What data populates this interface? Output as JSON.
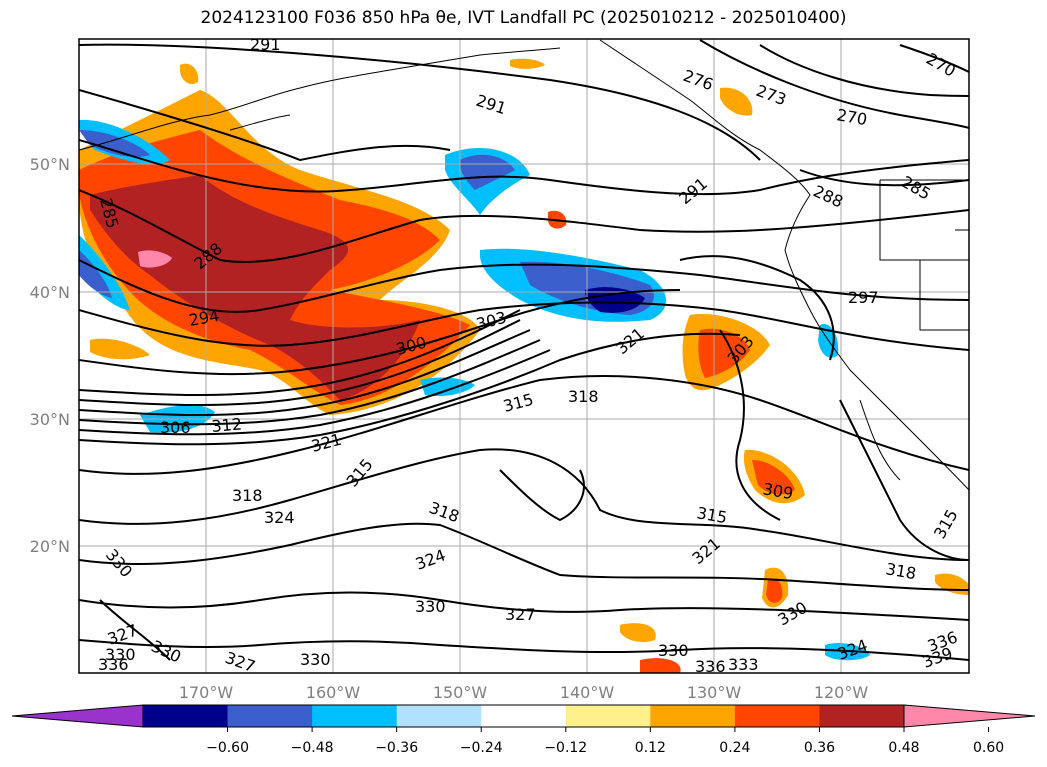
{
  "title": "2024123100 F036 850 hPa θe, IVT Landfall PC (2025010212 - 2025010400)",
  "lat_labels": [
    "50°N",
    "40°N",
    "30°N",
    "20°N"
  ],
  "lon_labels": [
    "170°W",
    "160°W",
    "150°W",
    "140°W",
    "130°W",
    "120°W"
  ],
  "colorbar": {
    "colors": [
      "#9933cc",
      "#00008b",
      "#3a5fcd",
      "#00bfff",
      "#b0e2ff",
      "#ffffff",
      "#fff08c",
      "#ffa500",
      "#ff4500",
      "#b22222",
      "#ff88aa"
    ],
    "ticks": [
      "−0.60",
      "−0.48",
      "−0.36",
      "−0.24",
      "−0.12",
      "0.12",
      "0.24",
      "0.36",
      "0.48",
      "0.60"
    ]
  },
  "contour_labels": [
    "291",
    "291",
    "276",
    "273",
    "270",
    "270",
    "285",
    "288",
    "291",
    "285",
    "288",
    "294",
    "297",
    "300",
    "303",
    "321",
    "303",
    "306",
    "312",
    "315",
    "318",
    "321",
    "315",
    "318",
    "324",
    "318",
    "309",
    "315",
    "315",
    "324",
    "321",
    "318",
    "330",
    "330",
    "327",
    "330",
    "330",
    "327",
    "330",
    "336",
    "333",
    "336",
    "339",
    "324",
    "330",
    "336",
    "330",
    "327"
  ]
}
